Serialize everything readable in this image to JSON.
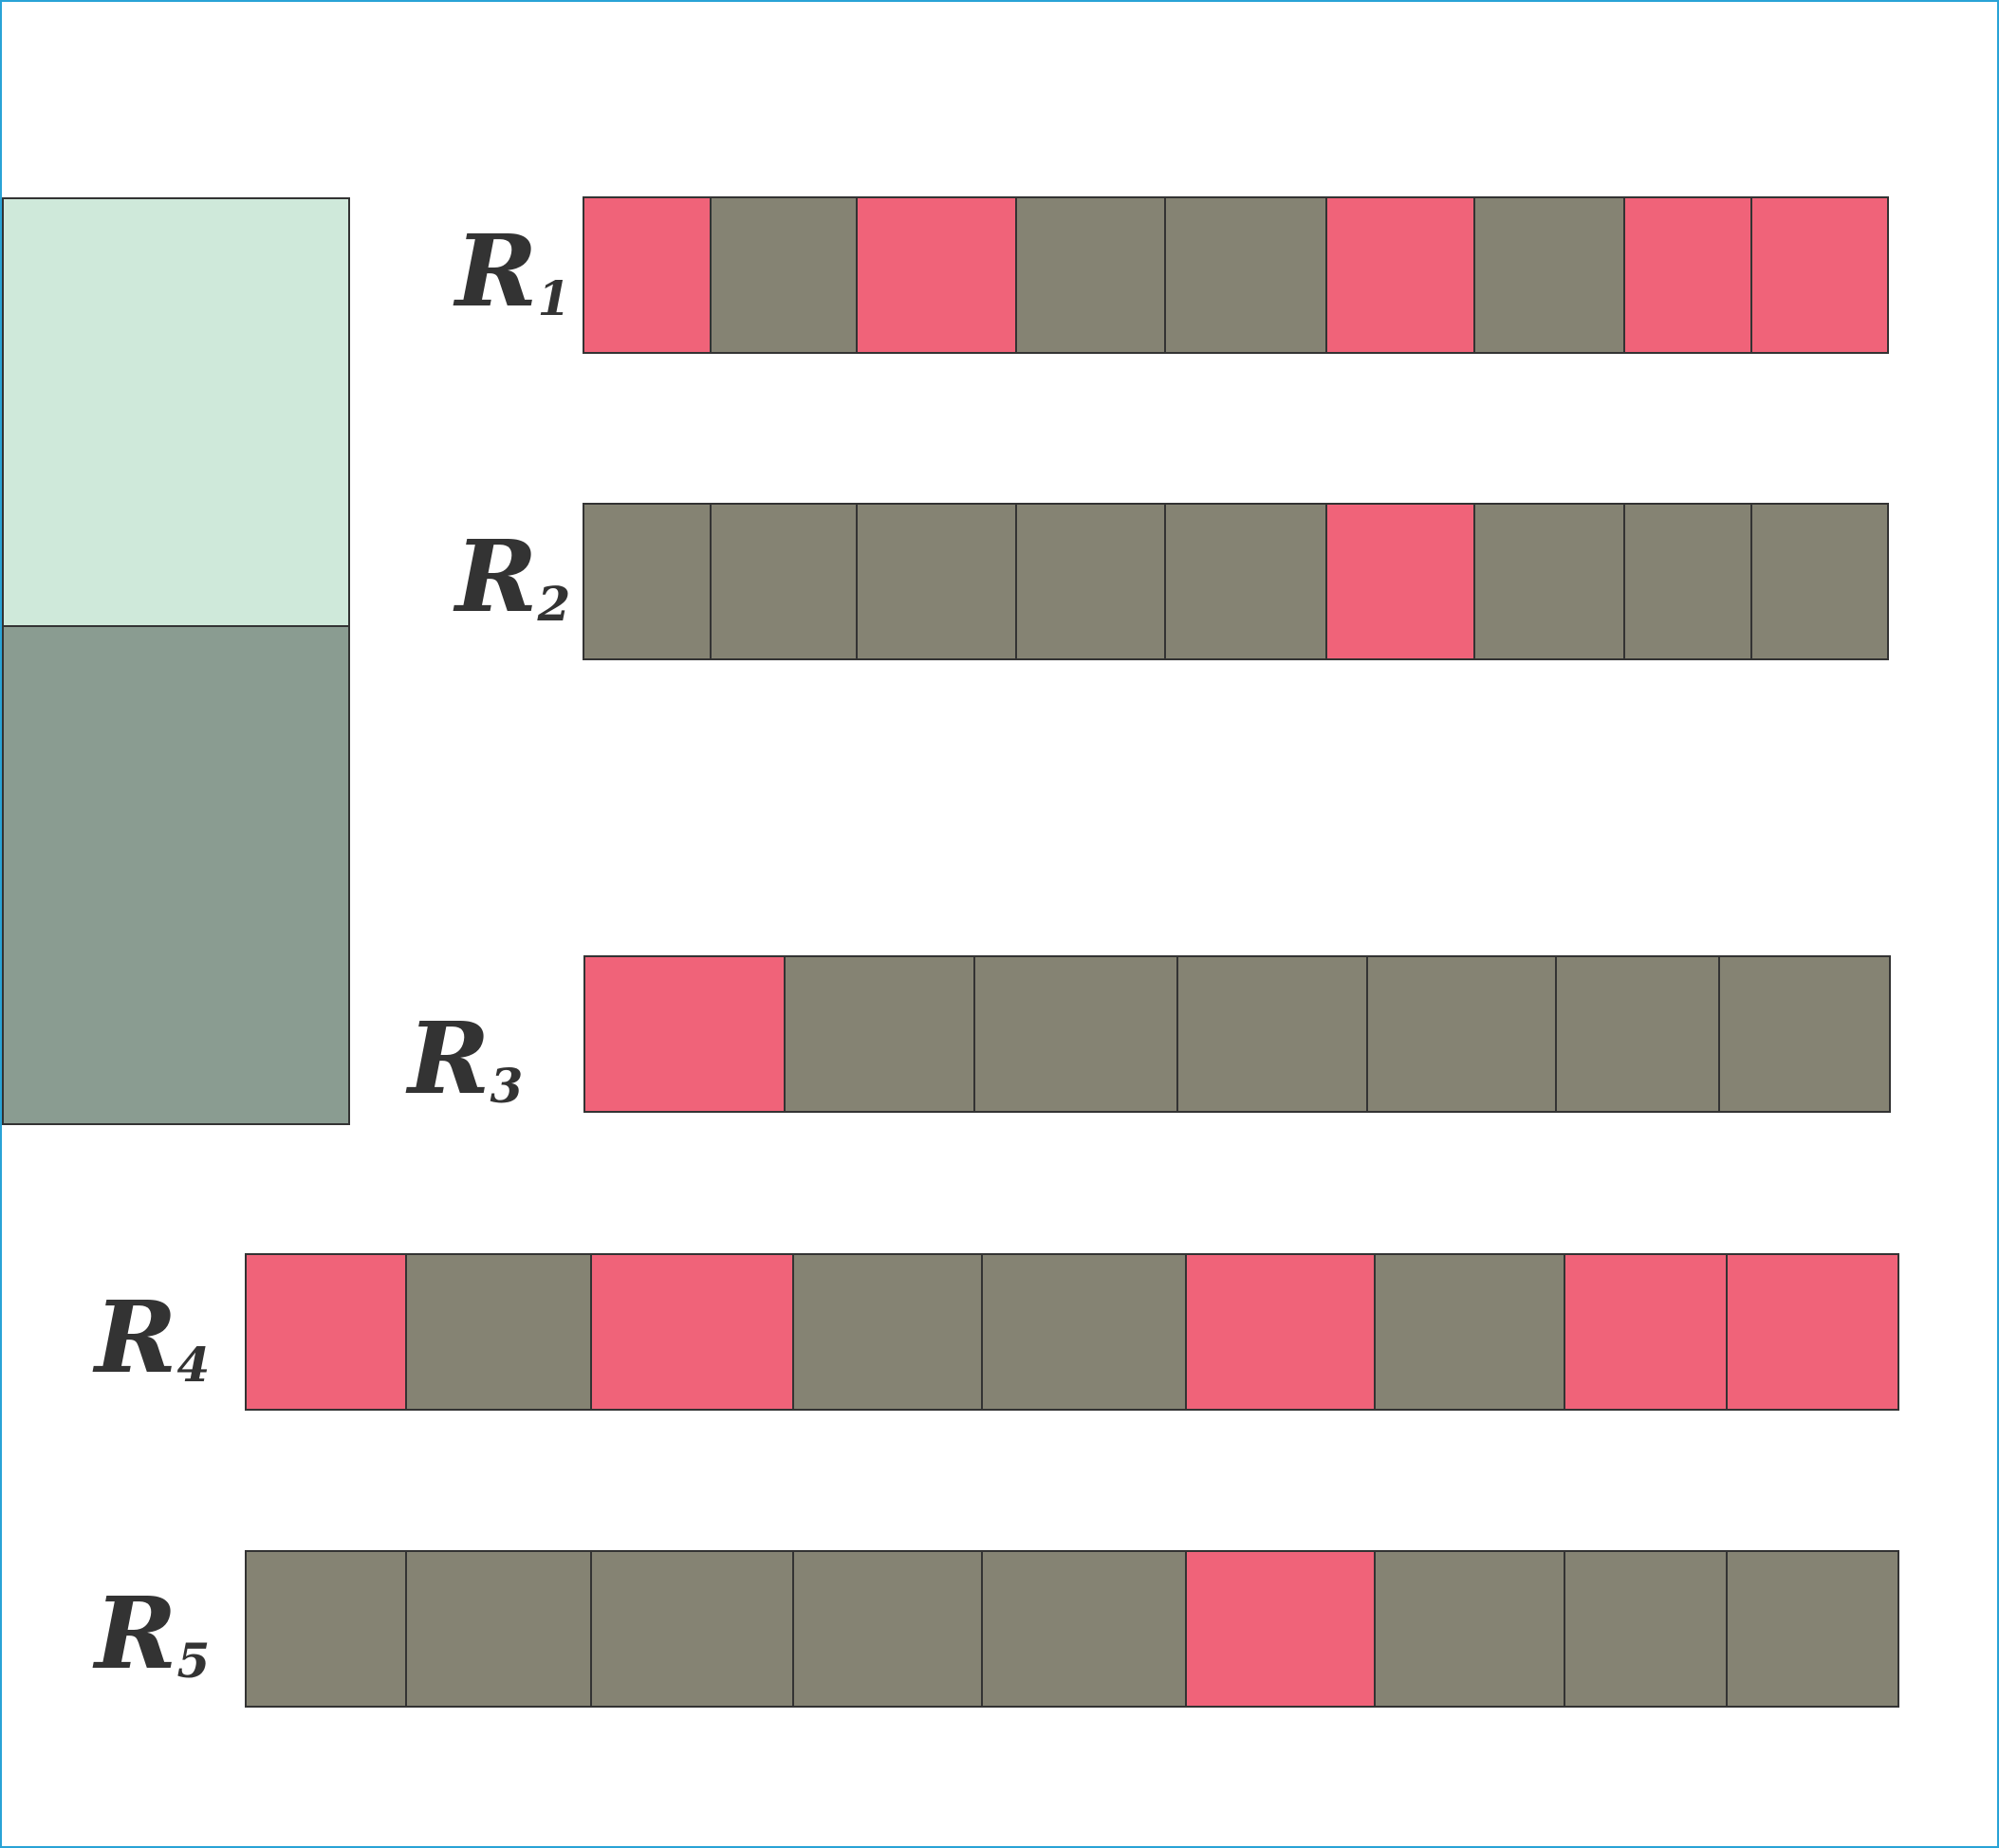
{
  "colors": {
    "frame": "#29a3d6",
    "legend_top": "#cfe9da",
    "legend_bottom": "#8a9c91",
    "highlight": "#f06379",
    "neutral": "#858373",
    "border": "#333333"
  },
  "legend": [
    {
      "color_key": "legend_top"
    },
    {
      "color_key": "legend_bottom"
    }
  ],
  "rows": [
    {
      "label": "R",
      "subscript": "1",
      "cells": [
        "highlight",
        "neutral",
        "highlight",
        "neutral",
        "neutral",
        "highlight",
        "neutral",
        "highlight",
        "highlight"
      ]
    },
    {
      "label": "R",
      "subscript": "2",
      "cells": [
        "neutral",
        "neutral",
        "neutral",
        "neutral",
        "neutral",
        "highlight",
        "neutral",
        "neutral",
        "neutral"
      ]
    },
    {
      "label": "R",
      "subscript": "3",
      "cells": [
        "highlight",
        "neutral",
        "neutral",
        "neutral",
        "neutral",
        "neutral",
        "neutral"
      ]
    },
    {
      "label": "R",
      "subscript": "4",
      "cells": [
        "highlight",
        "neutral",
        "highlight",
        "neutral",
        "neutral",
        "highlight",
        "neutral",
        "highlight",
        "highlight"
      ]
    },
    {
      "label": "R",
      "subscript": "5",
      "cells": [
        "neutral",
        "neutral",
        "neutral",
        "neutral",
        "neutral",
        "highlight",
        "neutral",
        "neutral",
        "neutral"
      ]
    }
  ]
}
